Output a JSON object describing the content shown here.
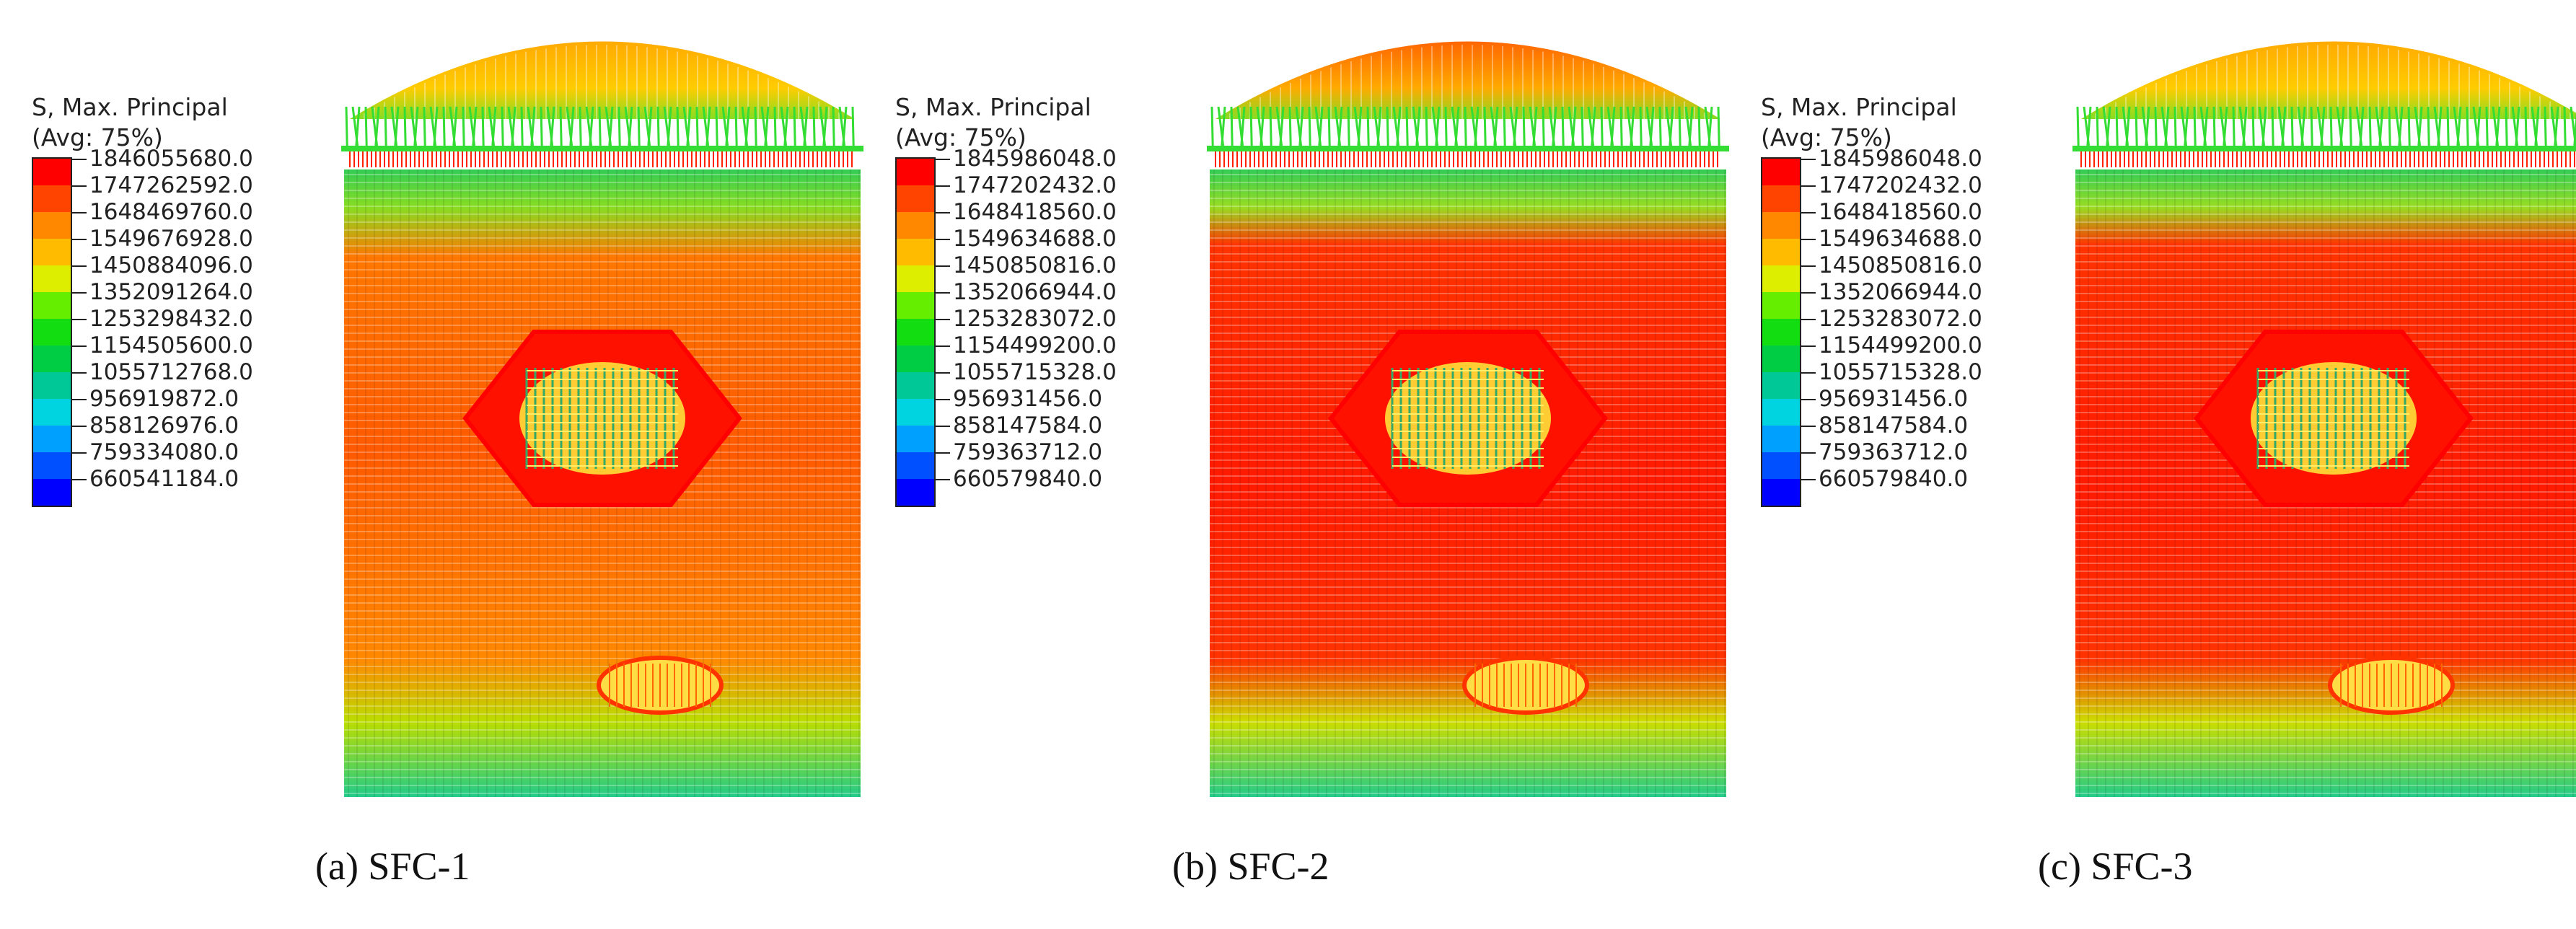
{
  "colors": {
    "scale": [
      "#ff0000",
      "#ff4400",
      "#ff8800",
      "#ffbb00",
      "#ddee00",
      "#66ee00",
      "#11dd11",
      "#00cc44",
      "#00c896",
      "#00d4e0",
      "#00a0ff",
      "#0050ff",
      "#0000ff"
    ]
  },
  "panels": [
    {
      "caption": "(a) SFC-1",
      "legend_title": "S, Max. Principal\n(Avg: 75%)",
      "ticks": [
        "1846055680.0",
        "1747262592.0",
        "1648469760.0",
        "1549676928.0",
        "1450884096.0",
        "1352091264.0",
        "1253298432.0",
        "1154505600.0",
        "1055712768.0",
        "956919872.0",
        "858126976.0",
        "759334080.0",
        "660541184.0"
      ]
    },
    {
      "caption": "(b) SFC-2",
      "legend_title": "S, Max. Principal\n(Avg: 75%)",
      "ticks": [
        "1845986048.0",
        "1747202432.0",
        "1648418560.0",
        "1549634688.0",
        "1450850816.0",
        "1352066944.0",
        "1253283072.0",
        "1154499200.0",
        "1055715328.0",
        "956931456.0",
        "858147584.0",
        "759363712.0",
        "660579840.0"
      ]
    },
    {
      "caption": "(c) SFC-3",
      "legend_title": "S, Max. Principal\n(Avg: 75%)",
      "ticks": [
        "1845986048.0",
        "1747202432.0",
        "1648418560.0",
        "1549634688.0",
        "1450850816.0",
        "1352066944.0",
        "1253283072.0",
        "1154499200.0",
        "1055715328.0",
        "956931456.0",
        "858147584.0",
        "759363712.0",
        "660579840.0"
      ]
    }
  ]
}
